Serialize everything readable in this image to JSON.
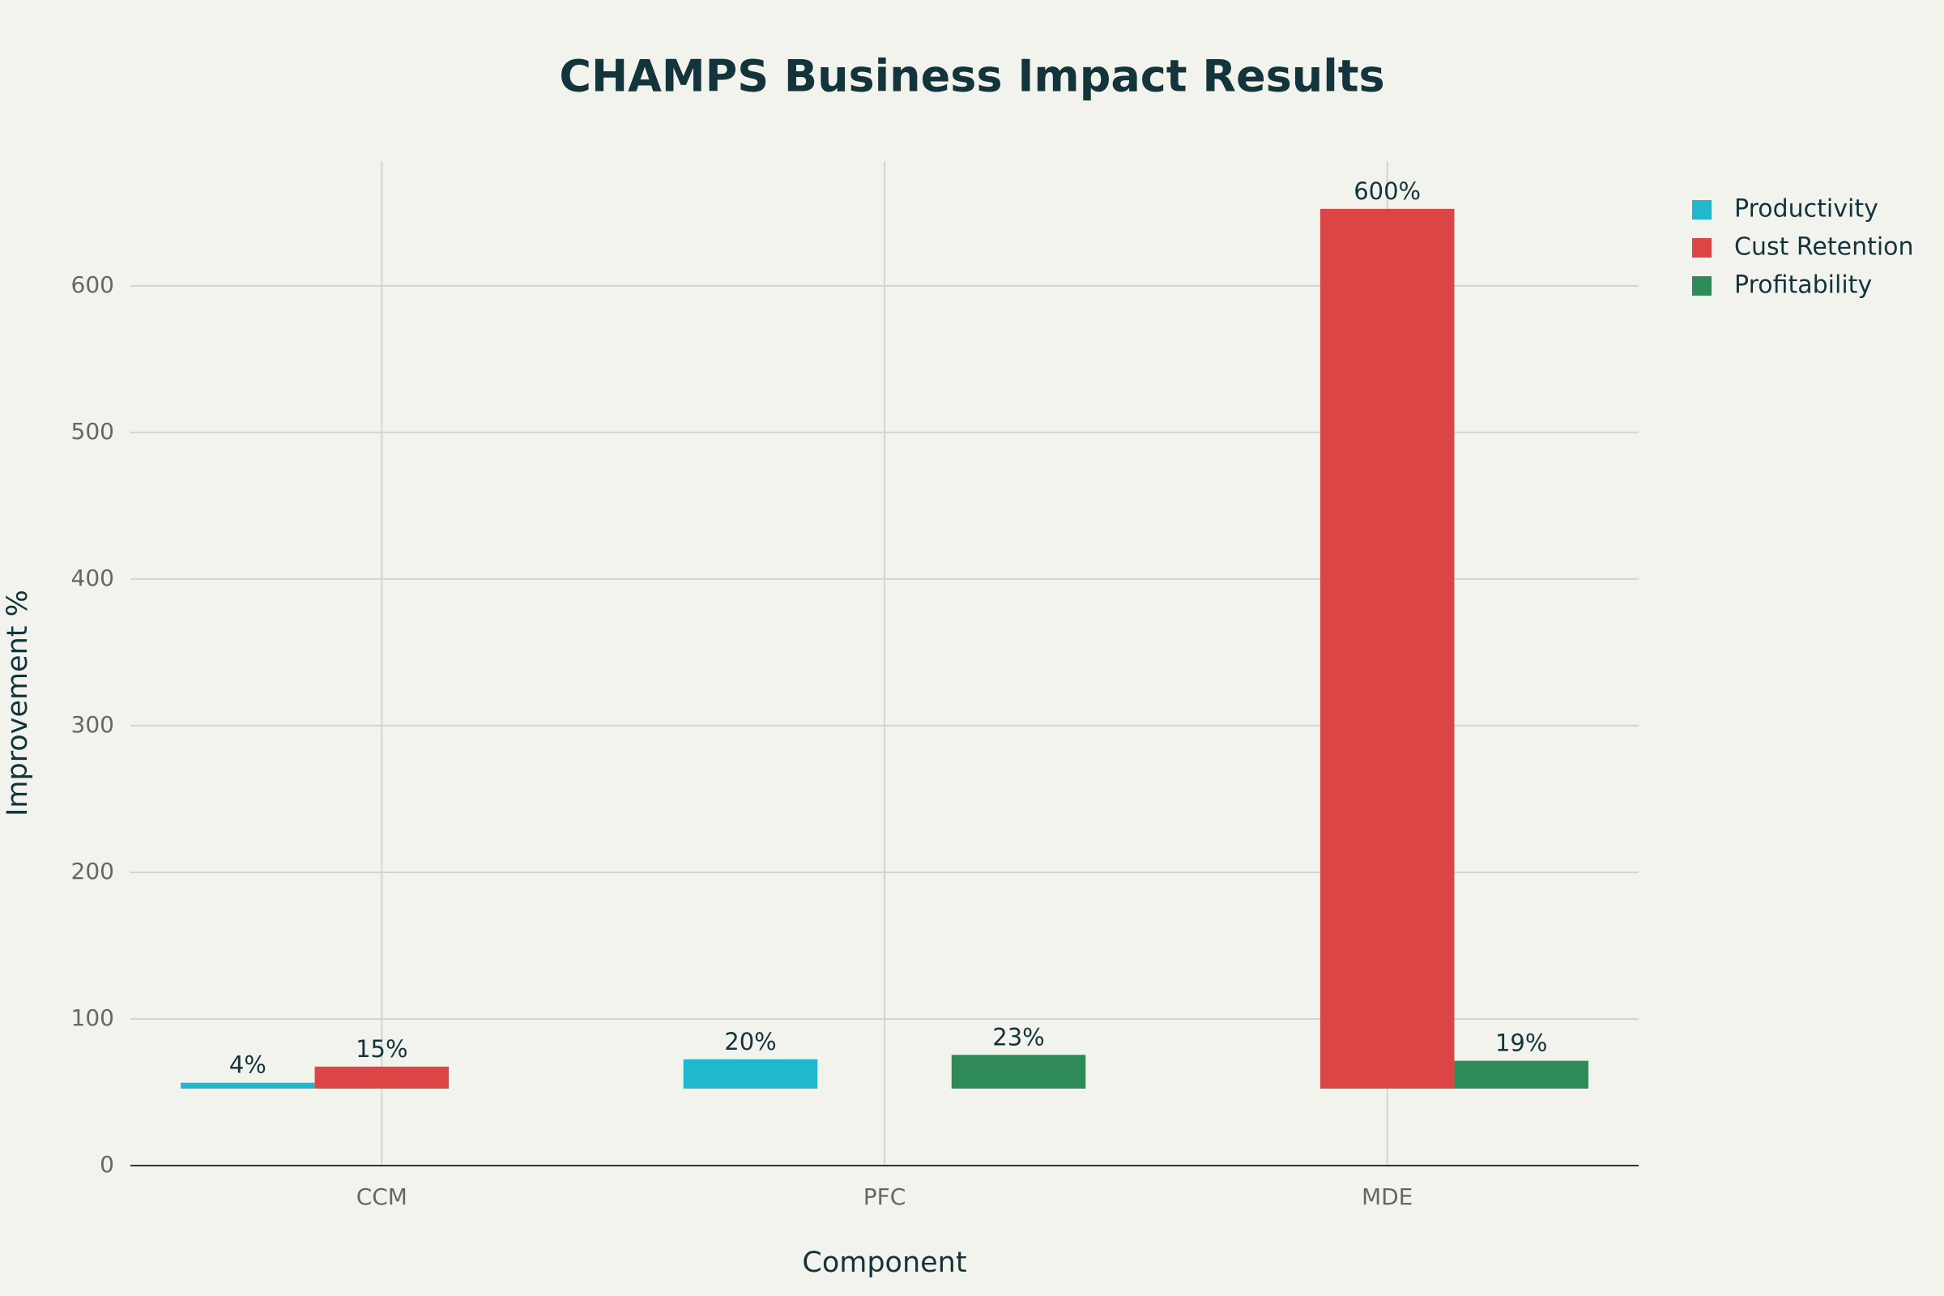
{
  "chart_data": {
    "type": "bar",
    "title": "CHAMPS Business Impact Results",
    "x_label": "Component",
    "y_label": "Improvement %",
    "categories": [
      "CCM",
      "PFC",
      "MDE"
    ],
    "series": [
      {
        "name": "Productivity",
        "color": "#1fb8cd",
        "values": [
          4,
          20,
          null
        ],
        "value_labels": [
          "4%",
          "20%",
          null
        ]
      },
      {
        "name": "Cust Retention",
        "color": "#db4545",
        "values": [
          15,
          null,
          600
        ],
        "value_labels": [
          "15%",
          null,
          "600%"
        ]
      },
      {
        "name": "Profitability",
        "color": "#2e8b57",
        "values": [
          null,
          23,
          19
        ],
        "value_labels": [
          null,
          "23%",
          "19%"
        ]
      }
    ],
    "base": 52.5,
    "ylim": [
      0,
      685
    ],
    "yticks": [
      0,
      100,
      200,
      300,
      400,
      500,
      600
    ],
    "grid": true,
    "legend": "top-right"
  }
}
